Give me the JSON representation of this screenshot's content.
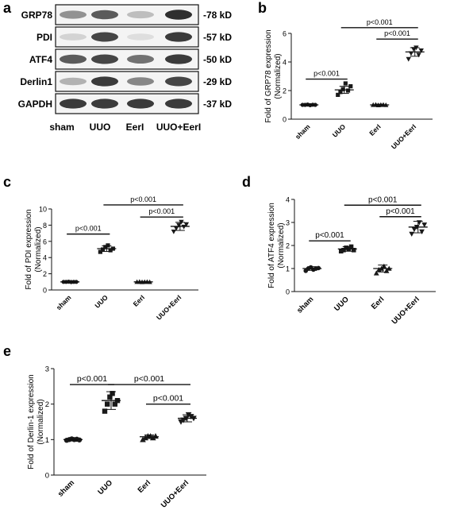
{
  "panel_labels": {
    "a": "a",
    "b": "b",
    "c": "c",
    "d": "d",
    "e": "e"
  },
  "blot": {
    "proteins": [
      "GRP78",
      "PDI",
      "ATF4",
      "Derlin1",
      "GAPDH"
    ],
    "sizes": [
      "-78 kD",
      "-57 kD",
      "-50 kD",
      "-29 kD",
      "-37 kD"
    ],
    "lanes": [
      "sham",
      "UUO",
      "EerI",
      "UUO+EerI"
    ],
    "band_intensity": [
      [
        0.45,
        0.7,
        0.25,
        0.9
      ],
      [
        0.15,
        0.8,
        0.1,
        0.85
      ],
      [
        0.7,
        0.8,
        0.6,
        0.85
      ],
      [
        0.3,
        0.85,
        0.5,
        0.8
      ],
      [
        0.85,
        0.85,
        0.85,
        0.85
      ]
    ],
    "band_color": "#1a1a1a"
  },
  "chart_data": [
    {
      "panel": "b",
      "type": "scatter",
      "categories": [
        "sham",
        "UUO",
        "EerI",
        "UUO+EerI"
      ],
      "ylabel": "Fold of GRP78 expression",
      "ylabel2": "(Normalized)",
      "ylim": [
        0,
        6
      ],
      "yticks": [
        "0",
        "2",
        "4",
        "6"
      ],
      "points": [
        [
          1.0,
          1.0,
          1.02,
          0.98,
          1.01,
          1.0
        ],
        [
          1.7,
          1.9,
          2.1,
          2.5,
          2.0,
          2.3
        ],
        [
          1.0,
          1.02,
          0.98,
          1.0,
          1.01,
          0.99
        ],
        [
          4.2,
          4.6,
          4.9,
          5.0,
          4.5,
          4.8
        ]
      ],
      "means": [
        1.0,
        2.05,
        1.0,
        4.7
      ],
      "sds": [
        0.05,
        0.25,
        0.05,
        0.3
      ],
      "brackets": [
        {
          "from": 0,
          "to": 1,
          "y": 2.8,
          "label": "p<0.001"
        },
        {
          "from": 2,
          "to": 3,
          "y": 5.6,
          "label": "p<0.001"
        },
        {
          "from": 1,
          "to": 3,
          "y": 6.4,
          "label": "p<0.001"
        }
      ]
    },
    {
      "panel": "c",
      "type": "scatter",
      "categories": [
        "sham",
        "UUO",
        "EerI",
        "UUO+EerI"
      ],
      "ylabel": "Fold of PDI expression",
      "ylabel2": "(Normalized)",
      "ylim": [
        0,
        10
      ],
      "yticks": [
        "0",
        "2",
        "4",
        "6",
        "8",
        "10"
      ],
      "points": [
        [
          1.0,
          1.0,
          1.02,
          0.98,
          1.0,
          1.0
        ],
        [
          4.7,
          5.0,
          5.3,
          5.5,
          4.9,
          5.1
        ],
        [
          1.0,
          1.02,
          0.98,
          1.0,
          1.01,
          0.99
        ],
        [
          7.2,
          7.6,
          8.0,
          8.4,
          7.8,
          8.1
        ]
      ],
      "means": [
        1.0,
        5.1,
        1.0,
        7.85
      ],
      "sds": [
        0.05,
        0.35,
        0.05,
        0.5
      ],
      "brackets": [
        {
          "from": 0,
          "to": 1,
          "y": 6.9,
          "label": "p<0.001"
        },
        {
          "from": 2,
          "to": 3,
          "y": 9.0,
          "label": "p<0.001"
        },
        {
          "from": 1,
          "to": 3,
          "y": 10.5,
          "label": "p<0.001"
        }
      ]
    },
    {
      "panel": "d",
      "type": "scatter",
      "categories": [
        "sham",
        "UUO",
        "EerI",
        "UUO+EerI"
      ],
      "ylabel": "Fold of ATF4 expression",
      "ylabel2": "(Normalized)",
      "ylim": [
        0,
        4
      ],
      "yticks": [
        "0",
        "1",
        "2",
        "3",
        "4"
      ],
      "points": [
        [
          0.9,
          1.0,
          1.05,
          0.95,
          1.0,
          1.02
        ],
        [
          1.75,
          1.8,
          1.9,
          1.85,
          1.95,
          1.8
        ],
        [
          0.8,
          0.95,
          1.0,
          1.1,
          0.9,
          1.0
        ],
        [
          2.5,
          2.7,
          2.8,
          3.0,
          2.6,
          2.9
        ]
      ],
      "means": [
        1.0,
        1.85,
        1.0,
        2.8
      ],
      "sds": [
        0.08,
        0.1,
        0.15,
        0.25
      ],
      "brackets": [
        {
          "from": 0,
          "to": 1,
          "y": 2.2,
          "label": "p<0.001"
        },
        {
          "from": 2,
          "to": 3,
          "y": 3.25,
          "label": "p<0.001"
        },
        {
          "from": 1,
          "to": 3,
          "y": 3.75,
          "label": "p<0.001"
        }
      ]
    },
    {
      "panel": "e",
      "type": "scatter",
      "categories": [
        "sham",
        "UUO",
        "EerI",
        "UUO+EerI"
      ],
      "ylabel": "Fold of Derlin-1 expression",
      "ylabel2": "(Normalized)",
      "ylim": [
        0,
        3
      ],
      "yticks": [
        "0",
        "1",
        "2",
        "3"
      ],
      "points": [
        [
          0.98,
          1.0,
          1.02,
          1.0,
          1.01,
          0.99
        ],
        [
          1.8,
          2.0,
          2.2,
          2.3,
          2.0,
          2.1
        ],
        [
          1.0,
          1.05,
          1.1,
          1.1,
          1.05,
          1.1
        ],
        [
          1.5,
          1.55,
          1.6,
          1.7,
          1.65,
          1.6
        ]
      ],
      "means": [
        1.0,
        2.1,
        1.08,
        1.6
      ],
      "sds": [
        0.03,
        0.25,
        0.05,
        0.1
      ],
      "brackets": [
        {
          "from": 0,
          "to": 1,
          "y": 2.55,
          "label": "p<0.001"
        },
        {
          "from": 2,
          "to": 3,
          "y": 2.0,
          "label": "p<0.001"
        },
        {
          "from": 1,
          "to": 3,
          "y": 2.55,
          "label": "p<0.001"
        }
      ]
    }
  ],
  "style": {
    "marker_color": "#1a1a1a"
  }
}
